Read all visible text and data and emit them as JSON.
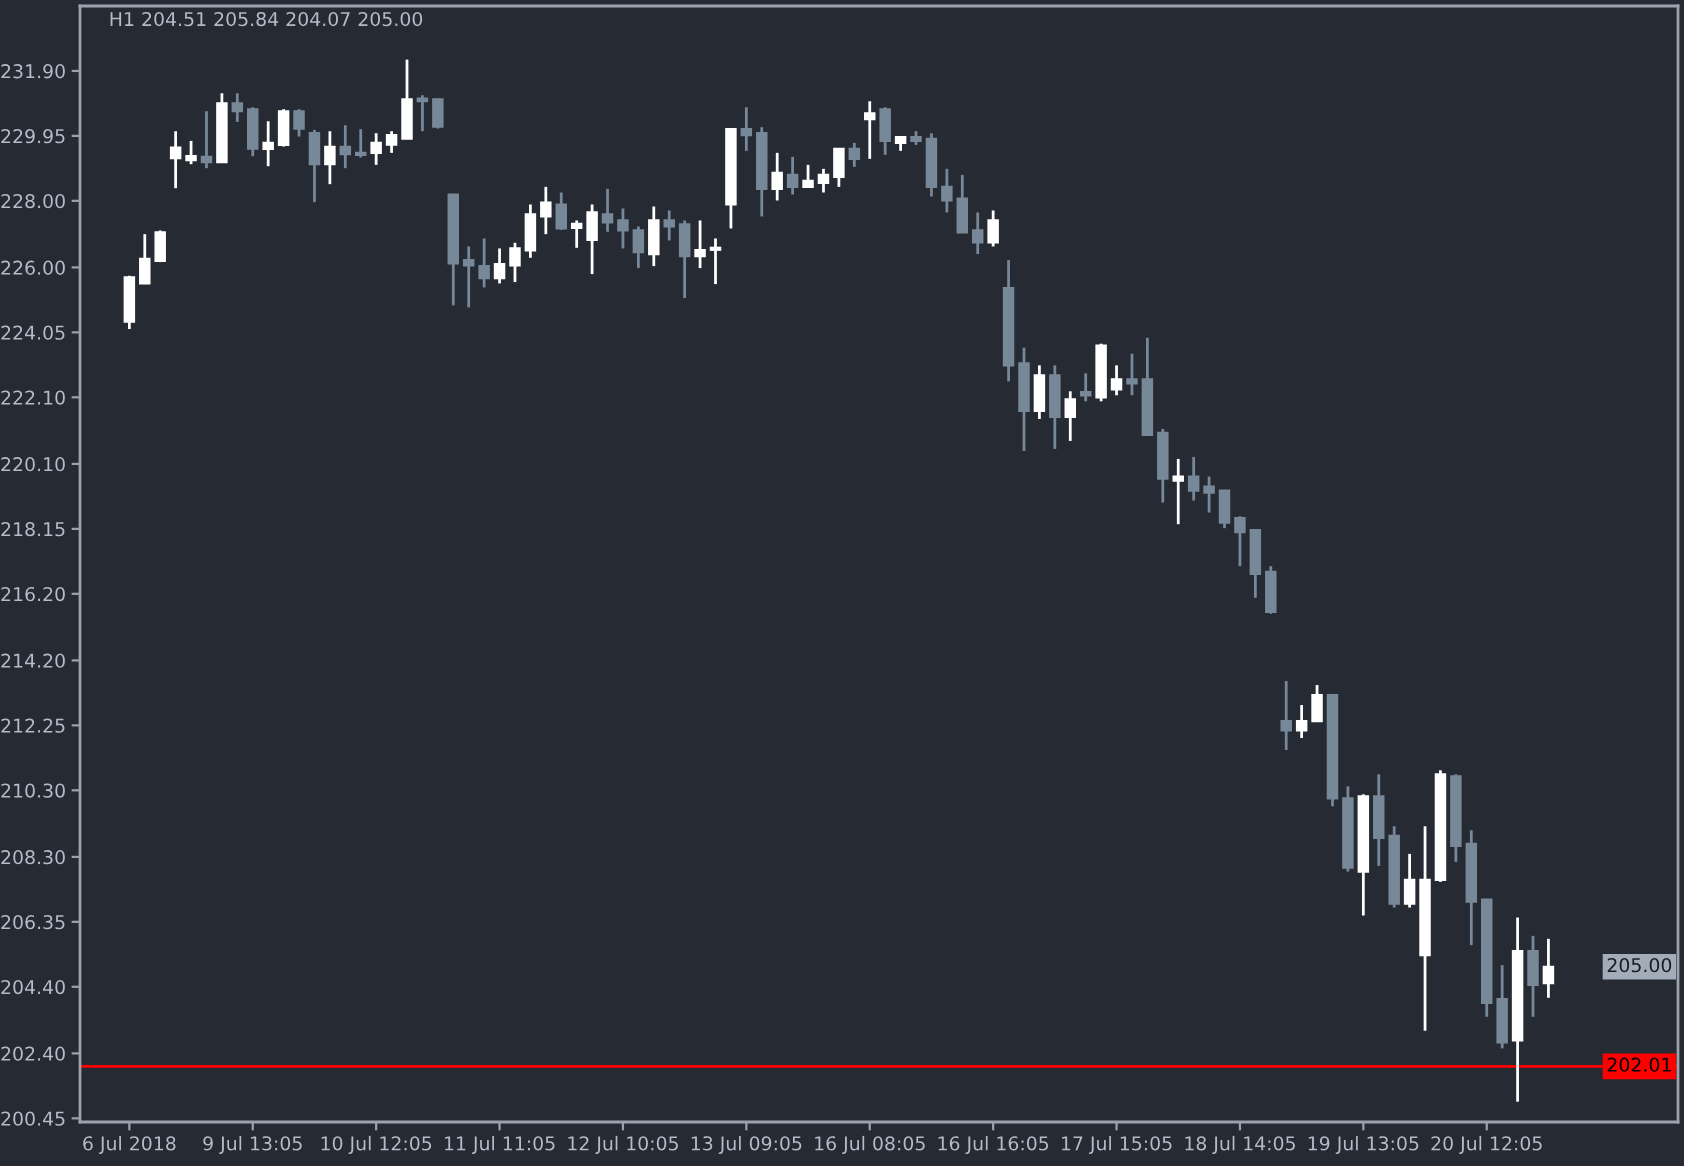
{
  "chart_data": {
    "type": "candlestick",
    "title": "H1 204.51 205.84 204.07 205.00",
    "categories": [
      "6 Jul 2018",
      null,
      null,
      null,
      null,
      null,
      null,
      null,
      "9 Jul 13:05",
      null,
      null,
      null,
      null,
      null,
      null,
      null,
      "10 Jul 12:05",
      null,
      null,
      null,
      null,
      null,
      null,
      null,
      "11 Jul 11:05",
      null,
      null,
      null,
      null,
      null,
      null,
      null,
      "12 Jul 10:05",
      null,
      null,
      null,
      null,
      null,
      null,
      null,
      "13 Jul 09:05",
      null,
      null,
      null,
      null,
      null,
      null,
      null,
      "16 Jul 08:05",
      null,
      null,
      null,
      null,
      null,
      null,
      null,
      "16 Jul 16:05",
      null,
      null,
      null,
      null,
      null,
      null,
      null,
      "17 Jul 15:05",
      null,
      null,
      null,
      null,
      null,
      null,
      null,
      "18 Jul 14:05",
      null,
      null,
      null,
      null,
      null,
      null,
      null,
      "19 Jul 13:05",
      null,
      null,
      null,
      null,
      null,
      null,
      null,
      "20 Jul 12:05",
      null,
      null,
      null,
      null
    ],
    "ohlc": [
      [
        224.37,
        225.75,
        224.15,
        225.7
      ],
      [
        225.52,
        227.0,
        225.5,
        226.26
      ],
      [
        226.2,
        227.11,
        226.16,
        227.05
      ],
      [
        229.28,
        230.09,
        228.38,
        229.6
      ],
      [
        229.22,
        229.8,
        229.1,
        229.34
      ],
      [
        229.32,
        230.69,
        228.98,
        229.16
      ],
      [
        229.16,
        231.23,
        229.14,
        230.93
      ],
      [
        230.93,
        231.23,
        230.37,
        230.69
      ],
      [
        230.75,
        230.81,
        229.34,
        229.57
      ],
      [
        229.56,
        230.39,
        229.04,
        229.74
      ],
      [
        229.68,
        230.75,
        229.63,
        230.69
      ],
      [
        230.69,
        230.75,
        229.93,
        230.17
      ],
      [
        230.03,
        230.13,
        227.96,
        229.1
      ],
      [
        229.1,
        230.09,
        228.5,
        229.62
      ],
      [
        229.62,
        230.27,
        228.98,
        229.4
      ],
      [
        229.44,
        230.15,
        229.3,
        229.38
      ],
      [
        229.44,
        230.03,
        229.08,
        229.74
      ],
      [
        229.69,
        230.09,
        229.44,
        229.97
      ],
      [
        229.87,
        232.24,
        229.85,
        231.05
      ],
      [
        231.07,
        231.17,
        230.09,
        230.99
      ],
      [
        231.05,
        231.07,
        230.17,
        230.23
      ],
      [
        228.19,
        228.21,
        224.86,
        226.12
      ],
      [
        226.22,
        226.63,
        224.8,
        226.06
      ],
      [
        226.04,
        226.87,
        225.4,
        225.68
      ],
      [
        225.68,
        226.57,
        225.52,
        226.1
      ],
      [
        226.06,
        226.74,
        225.56,
        226.57
      ],
      [
        226.51,
        227.89,
        226.29,
        227.59
      ],
      [
        227.53,
        228.42,
        227.0,
        227.95
      ],
      [
        227.89,
        228.25,
        227.13,
        227.17
      ],
      [
        227.19,
        227.41,
        226.59,
        227.31
      ],
      [
        226.83,
        227.89,
        225.8,
        227.65
      ],
      [
        227.59,
        228.36,
        227.07,
        227.35
      ],
      [
        227.41,
        227.77,
        226.57,
        227.11
      ],
      [
        227.11,
        227.23,
        225.98,
        226.46
      ],
      [
        226.4,
        227.83,
        226.04,
        227.41
      ],
      [
        227.41,
        227.71,
        226.81,
        227.23
      ],
      [
        227.29,
        227.41,
        225.08,
        226.34
      ],
      [
        226.34,
        227.41,
        225.98,
        226.52
      ],
      [
        226.53,
        226.87,
        225.5,
        226.59
      ],
      [
        227.89,
        230.17,
        227.17,
        230.15
      ],
      [
        230.15,
        230.81,
        229.5,
        229.97
      ],
      [
        230.03,
        230.21,
        227.53,
        228.36
      ],
      [
        228.36,
        229.44,
        228.01,
        228.84
      ],
      [
        228.78,
        229.32,
        228.19,
        228.42
      ],
      [
        228.42,
        229.08,
        228.4,
        228.6
      ],
      [
        228.54,
        228.96,
        228.25,
        228.78
      ],
      [
        228.72,
        229.58,
        228.42,
        229.56
      ],
      [
        229.56,
        229.74,
        229.02,
        229.26
      ],
      [
        230.45,
        230.99,
        229.26,
        230.63
      ],
      [
        230.75,
        230.81,
        229.38,
        229.8
      ],
      [
        229.74,
        229.93,
        229.5,
        229.91
      ],
      [
        229.91,
        230.09,
        229.68,
        229.8
      ],
      [
        229.86,
        230.03,
        228.13,
        228.42
      ],
      [
        228.42,
        228.96,
        227.65,
        228.01
      ],
      [
        228.07,
        228.78,
        227.03,
        227.05
      ],
      [
        227.11,
        227.65,
        226.4,
        226.75
      ],
      [
        226.75,
        227.71,
        226.63,
        227.41
      ],
      [
        225.38,
        226.22,
        222.58,
        223.06
      ],
      [
        223.12,
        223.59,
        220.49,
        221.69
      ],
      [
        221.69,
        223.06,
        221.45,
        222.76
      ],
      [
        222.76,
        223.06,
        220.55,
        221.51
      ],
      [
        221.51,
        222.28,
        220.79,
        222.04
      ],
      [
        222.26,
        222.82,
        221.98,
        222.16
      ],
      [
        222.1,
        223.71,
        221.98,
        223.65
      ],
      [
        222.34,
        223.06,
        222.16,
        222.64
      ],
      [
        222.64,
        223.41,
        222.16,
        222.52
      ],
      [
        222.64,
        223.89,
        220.95,
        220.97
      ],
      [
        221.03,
        221.15,
        218.94,
        219.66
      ],
      [
        219.6,
        220.25,
        218.29,
        219.72
      ],
      [
        219.72,
        220.31,
        219.0,
        219.3
      ],
      [
        219.42,
        219.72,
        218.64,
        219.24
      ],
      [
        219.3,
        219.32,
        218.17,
        218.34
      ],
      [
        218.47,
        218.53,
        217.03,
        218.05
      ],
      [
        218.11,
        218.13,
        216.08,
        216.8
      ],
      [
        216.86,
        217.03,
        215.6,
        215.66
      ],
      [
        212.38,
        213.58,
        211.51,
        212.1
      ],
      [
        212.1,
        212.86,
        211.87,
        212.38
      ],
      [
        212.38,
        213.46,
        212.36,
        213.16
      ],
      [
        213.16,
        213.18,
        209.82,
        210.06
      ],
      [
        210.06,
        210.42,
        207.86,
        207.98
      ],
      [
        207.86,
        210.18,
        206.54,
        210.12
      ],
      [
        210.12,
        210.78,
        208.03,
        208.87
      ],
      [
        208.93,
        209.22,
        206.78,
        206.9
      ],
      [
        206.9,
        208.39,
        206.78,
        207.61
      ],
      [
        205.35,
        209.22,
        203.08,
        207.61
      ],
      [
        207.61,
        210.9,
        207.55,
        210.78
      ],
      [
        210.72,
        210.78,
        208.15,
        208.63
      ],
      [
        208.69,
        209.1,
        205.65,
        206.96
      ],
      [
        207.02,
        207.04,
        203.5,
        203.92
      ],
      [
        204.03,
        205.05,
        202.55,
        202.73
      ],
      [
        202.79,
        206.48,
        200.95,
        205.47
      ],
      [
        205.47,
        205.93,
        203.5,
        204.46
      ],
      [
        204.51,
        205.84,
        204.07,
        205.0
      ]
    ],
    "colors": [
      "#ffffff",
      "#ffffff",
      "#ffffff",
      "#ffffff",
      "#ffffff",
      "#778899",
      "#ffffff",
      "#778899",
      "#778899",
      "#ffffff",
      "#ffffff",
      "#778899",
      "#778899",
      "#ffffff",
      "#778899",
      "#778899",
      "#ffffff",
      "#ffffff",
      "#ffffff",
      "#778899",
      "#778899",
      "#778899",
      "#778899",
      "#778899",
      "#ffffff",
      "#ffffff",
      "#ffffff",
      "#ffffff",
      "#778899",
      "#ffffff",
      "#ffffff",
      "#778899",
      "#778899",
      "#778899",
      "#ffffff",
      "#778899",
      "#778899",
      "#ffffff",
      "#ffffff",
      "#ffffff",
      "#778899",
      "#778899",
      "#ffffff",
      "#778899",
      "#ffffff",
      "#ffffff",
      "#ffffff",
      "#778899",
      "#ffffff",
      "#778899",
      "#ffffff",
      "#778899",
      "#778899",
      "#778899",
      "#778899",
      "#778899",
      "#ffffff",
      "#778899",
      "#778899",
      "#ffffff",
      "#778899",
      "#ffffff",
      "#778899",
      "#ffffff",
      "#ffffff",
      "#778899",
      "#778899",
      "#778899",
      "#ffffff",
      "#778899",
      "#778899",
      "#778899",
      "#778899",
      "#778899",
      "#778899",
      "#778899",
      "#ffffff",
      "#ffffff",
      "#778899",
      "#778899",
      "#ffffff",
      "#778899",
      "#778899",
      "#ffffff",
      "#ffffff",
      "#ffffff",
      "#778899",
      "#778899",
      "#778899",
      "#778899",
      "#ffffff",
      "#778899",
      "#ffffff"
    ],
    "ylim": [
      200.34,
      233.85
    ],
    "yticks": [
      {
        "value": 231.9,
        "label": "231.90"
      },
      {
        "value": 229.95,
        "label": "229.95"
      },
      {
        "value": 228.0,
        "label": "228.00"
      },
      {
        "value": 226.0,
        "label": "226.00"
      },
      {
        "value": 224.05,
        "label": "224.05"
      },
      {
        "value": 222.1,
        "label": "222.10"
      },
      {
        "value": 220.1,
        "label": "220.10"
      },
      {
        "value": 218.15,
        "label": "218.15"
      },
      {
        "value": 216.2,
        "label": "216.20"
      },
      {
        "value": 214.2,
        "label": "214.20"
      },
      {
        "value": 212.25,
        "label": "212.25"
      },
      {
        "value": 210.3,
        "label": "210.30"
      },
      {
        "value": 208.3,
        "label": "208.30"
      },
      {
        "value": 206.35,
        "label": "206.35"
      },
      {
        "value": 204.4,
        "label": "204.40"
      },
      {
        "value": 202.4,
        "label": "202.40"
      },
      {
        "value": 200.45,
        "label": "200.45"
      }
    ],
    "ref_lines": [
      {
        "axis": "y",
        "value": 202.01,
        "label": "202.01",
        "color": "#ff0000",
        "line_style": "solid"
      }
    ],
    "annotations": [
      "205.00"
    ]
  }
}
